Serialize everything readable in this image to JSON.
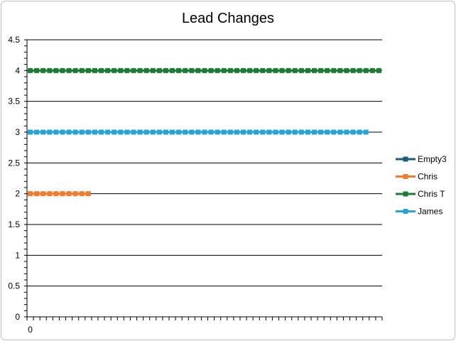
{
  "chart_data": {
    "type": "line",
    "title": "Lead Changes",
    "xlabel": "",
    "ylabel": "",
    "ylim": [
      0,
      4.5
    ],
    "y_ticks": [
      0,
      0.5,
      1,
      1.5,
      2,
      2.5,
      3,
      3.5,
      4,
      4.5
    ],
    "y_tick_labels": [
      "0",
      "0.5",
      "1",
      "1.5",
      "2",
      "2.5",
      "3",
      "3.5",
      "4",
      "4.5"
    ],
    "x_tick_label": "0",
    "x_count": 55,
    "grid": true,
    "legend": "right",
    "series": [
      {
        "name": "Empty3",
        "color": "#1f5c7a",
        "start": 0,
        "count": 0,
        "value": 0
      },
      {
        "name": "Chris",
        "color": "#ed7d31",
        "start": 0,
        "count": 10,
        "value": 2
      },
      {
        "name": "Chris T",
        "color": "#1e7b34",
        "start": 0,
        "count": 55,
        "value": 4
      },
      {
        "name": "James",
        "color": "#29a3d6",
        "start": 0,
        "count": 53,
        "value": 3
      }
    ]
  }
}
